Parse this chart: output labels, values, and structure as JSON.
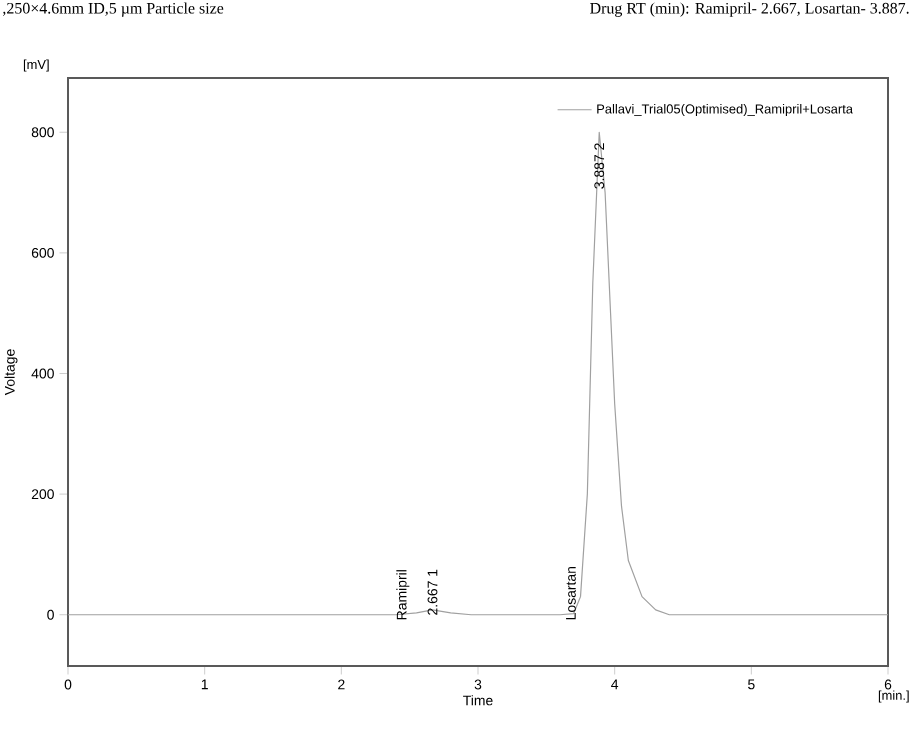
{
  "chart_data": {
    "type": "line",
    "xlabel": "Time",
    "ylabel": "Voltage",
    "annotations": [
      ",250×4.6mm ID,5 µm Particle size",
      "Drug RT (min): Ramipril- 2.667, Losartan- 3.887.",
      "[mV]",
      "[min.]",
      {
        "text": "Ramipril",
        "x": 2.45,
        "y": 0
      },
      {
        "text": "2.667   1",
        "x": 2.667,
        "y": 8
      },
      {
        "text": "Losartan",
        "x": 3.68,
        "y": 0
      },
      {
        "text": "3.887   2",
        "x": 3.887,
        "y": 800
      }
    ],
    "x": [
      0,
      2.4,
      2.55,
      2.667,
      2.8,
      2.95,
      3.6,
      3.7,
      3.75,
      3.8,
      3.84,
      3.887,
      3.93,
      3.97,
      4.0,
      4.05,
      4.1,
      4.2,
      4.3,
      4.4,
      6
    ],
    "series": [
      {
        "name": "Pallavi_Trial05(Optimised)_Ramipril+Losarta",
        "color": "#a0a0a0",
        "values": [
          0,
          0,
          3,
          8,
          3,
          0,
          0,
          2,
          30,
          200,
          550,
          800,
          700,
          500,
          350,
          180,
          90,
          30,
          8,
          0,
          0
        ]
      }
    ],
    "xlim": [
      0,
      6
    ],
    "ylim": [
      -85,
      890
    ],
    "xticks": [
      0,
      1,
      2,
      3,
      4,
      5,
      6
    ],
    "yticks": [
      0,
      200,
      400,
      600,
      800
    ],
    "grid": false,
    "legend": "top right",
    "marker": "none",
    "line_style": "solid"
  }
}
